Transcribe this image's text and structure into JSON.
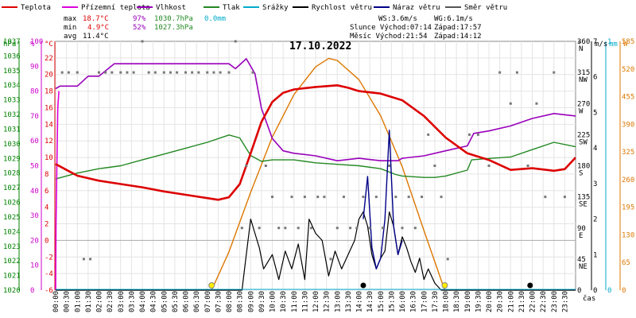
{
  "chart_data": {
    "type": "line",
    "title": "17.10.2022",
    "xlabel": "čas",
    "x_ticks": [
      "00:00",
      "00:30",
      "01:00",
      "01:30",
      "02:00",
      "02:30",
      "03:00",
      "03:30",
      "04:00",
      "04:30",
      "05:00",
      "05:30",
      "06:00",
      "06:30",
      "07:00",
      "07:30",
      "08:00",
      "08:30",
      "09:00",
      "09:30",
      "10:00",
      "10:30",
      "11:00",
      "11:30",
      "12:00",
      "12:30",
      "13:00",
      "13:30",
      "14:00",
      "14:30",
      "15:00",
      "15:30",
      "16:00",
      "16:30",
      "17:00",
      "17:30",
      "18:00",
      "18:30",
      "19:00",
      "19:30",
      "20:00",
      "20:30",
      "21:00",
      "21:30",
      "22:00",
      "22:30",
      "23:00",
      "23:30"
    ],
    "axes": {
      "hpa": {
        "unit": "hPa",
        "color": "#008000",
        "range": [
          1020,
          1037
        ],
        "ticks": [
          "1020",
          "1021",
          "1022",
          "1023",
          "1024",
          "1025",
          "1026",
          "1027",
          "1028",
          "1029",
          "1030",
          "1031",
          "1032",
          "1033",
          "1034",
          "1035",
          "1036",
          "1037"
        ]
      },
      "pct": {
        "unit": "%",
        "color": "#cc00cc",
        "range": [
          0,
          100
        ],
        "ticks": [
          "0",
          "10",
          "20",
          "30",
          "40",
          "50",
          "60",
          "70",
          "80",
          "90",
          "100"
        ]
      },
      "temp": {
        "unit": "°C",
        "color": "#dd0000",
        "range": [
          -6,
          24
        ],
        "ticks": [
          "-6",
          "-4",
          "-2",
          "0",
          "2",
          "4",
          "6",
          "8",
          "10",
          "12",
          "14",
          "16",
          "18",
          "20",
          "22"
        ]
      },
      "dir": {
        "unit": "°",
        "range": [
          0,
          360
        ],
        "ticks": [
          {
            "v": "360",
            "s": "N"
          },
          {
            "v": "315",
            "s": "NW"
          },
          {
            "v": "270",
            "s": "W"
          },
          {
            "v": "225",
            "s": "SW"
          },
          {
            "v": "180",
            "s": "S"
          },
          {
            "v": "135",
            "s": "SE"
          },
          {
            "v": "90",
            "s": "E"
          },
          {
            "v": "45",
            "s": "NE"
          },
          {
            "v": "0",
            "s": ""
          }
        ]
      },
      "wind": {
        "unit": "m/s",
        "color": "#000000",
        "range": [
          0,
          7
        ],
        "ticks": [
          "0",
          "1",
          "2",
          "3",
          "4",
          "5",
          "6",
          "7"
        ]
      },
      "rain": {
        "unit": "mm",
        "color": "#00aacc",
        "range": [
          0,
          1
        ],
        "ticks": [
          "0",
          "1"
        ]
      },
      "w": {
        "unit": "W",
        "color": "#dd7700",
        "range": [
          0,
          585
        ],
        "ticks": [
          "0",
          "65",
          "130",
          "195",
          "260",
          "325",
          "390",
          "455",
          "520",
          "585"
        ]
      }
    },
    "legend": [
      {
        "name": "Teplota",
        "color": "#dd0000"
      },
      {
        "name": "Přízemní teplota",
        "color": "#dd00dd"
      },
      {
        "name": "Vlhkost",
        "color": "#9900bb"
      },
      {
        "name": "Tlak",
        "color": "#228822"
      },
      {
        "name": "Srážky",
        "color": "#00aacc"
      },
      {
        "name": "Rychlost větru",
        "color": "#000000"
      },
      {
        "name": "Náraz větru",
        "color": "#000088"
      },
      {
        "name": "Směr větru",
        "color": "#555555"
      }
    ],
    "stats": {
      "max_label": "max",
      "max_t": "18.7°C",
      "max_h": "97%",
      "max_p": "1030.7hPa",
      "max_r": "0.0mm",
      "min_label": "min",
      "min_t": "4.9°C",
      "min_h": "52%",
      "min_p": "1027.3hPa",
      "avg_label": "avg",
      "avg_t": "11.4°C"
    },
    "info": {
      "ws": "WS:3.6m/s",
      "wg": "WG:6.1m/s",
      "sun": "Slunce Východ:07:14",
      "sun_set": "Západ:17:57",
      "moon": "Měsíc Východ:21:54",
      "moon_set": "Západ:14:12"
    },
    "series": {
      "temp": {
        "axis": "temp",
        "x": [
          0,
          0.5,
          1,
          2,
          3,
          4,
          5,
          6,
          7,
          7.5,
          8,
          8.5,
          9,
          9.5,
          10,
          10.5,
          11,
          12,
          13,
          13.5,
          14,
          15,
          16,
          17,
          18,
          19,
          20,
          21,
          22,
          23,
          23.5,
          24
        ],
        "y": [
          9.2,
          8.5,
          7.8,
          7.2,
          6.8,
          6.4,
          5.9,
          5.5,
          5.1,
          4.9,
          5.2,
          6.8,
          10.5,
          14.3,
          16.7,
          17.8,
          18.2,
          18.5,
          18.7,
          18.4,
          18.0,
          17.7,
          16.9,
          15.0,
          12.4,
          10.5,
          9.7,
          8.5,
          8.7,
          8.4,
          8.6,
          10.0
        ]
      },
      "humidity": {
        "axis": "pct",
        "x": [
          0,
          0.2,
          1,
          1.5,
          2,
          2.7,
          3,
          5,
          7,
          8,
          8.3,
          8.8,
          9.2,
          9.5,
          10,
          10.5,
          11,
          12,
          13,
          14,
          15,
          15.8,
          16,
          17,
          18,
          19,
          19.3,
          20,
          21,
          22,
          23,
          24
        ],
        "y": [
          81,
          82,
          82,
          86,
          86,
          91,
          91,
          91,
          91,
          91,
          89,
          93,
          87,
          73,
          61,
          56,
          55,
          54,
          52,
          53,
          52,
          52,
          53,
          54,
          56,
          58,
          63,
          64,
          66,
          69,
          71,
          70
        ]
      },
      "ground": {
        "axis": "temp",
        "x": [
          0,
          0.02,
          0.05,
          0.1,
          0.15
        ],
        "y": [
          -6,
          2,
          8,
          16,
          18
        ]
      },
      "pressure": {
        "axis": "hpa",
        "x": [
          0,
          1,
          2,
          3,
          4,
          5,
          6,
          7,
          8,
          8.5,
          9,
          9.5,
          10,
          11,
          12,
          13,
          14,
          15,
          15.7,
          16,
          17,
          17.5,
          18,
          19,
          19.2,
          20,
          21,
          22,
          23,
          24
        ],
        "y": [
          1027.6,
          1028.0,
          1028.3,
          1028.5,
          1028.9,
          1029.3,
          1029.7,
          1030.1,
          1030.6,
          1030.4,
          1029.2,
          1028.8,
          1028.9,
          1028.9,
          1028.7,
          1028.6,
          1028.5,
          1028.3,
          1027.9,
          1027.8,
          1027.7,
          1027.7,
          1027.8,
          1028.2,
          1028.9,
          1029.0,
          1029.1,
          1029.6,
          1030.1,
          1029.8
        ]
      },
      "wind": {
        "axis": "wind",
        "x": [
          0,
          8.6,
          8.8,
          9.0,
          9.2,
          9.4,
          9.6,
          9.8,
          10,
          10.3,
          10.6,
          10.9,
          11.2,
          11.5,
          11.7,
          12.0,
          12.3,
          12.6,
          12.9,
          13.2,
          13.5,
          13.8,
          14.0,
          14.2,
          14.4,
          14.6,
          14.8,
          15.0,
          15.2,
          15.4,
          15.6,
          15.8,
          16.0,
          16.2,
          16.4,
          16.6,
          16.8,
          17.0,
          17.2,
          17.5,
          17.8,
          24
        ],
        "y": [
          0,
          0,
          1.0,
          2.0,
          1.6,
          1.2,
          0.6,
          0.8,
          1.0,
          0.3,
          1.1,
          0.6,
          1.3,
          0.3,
          2.0,
          1.6,
          1.4,
          0.4,
          1.1,
          0.6,
          1.0,
          1.4,
          2.0,
          2.2,
          1.8,
          1.0,
          0.6,
          0.9,
          1.1,
          2.2,
          1.8,
          1.0,
          1.5,
          1.2,
          0.8,
          0.5,
          0.9,
          0.3,
          0.6,
          0.2,
          0,
          0
        ]
      },
      "gust": {
        "axis": "wind",
        "x": [
          14.2,
          14.4,
          14.6,
          14.8,
          15.0,
          15.2,
          15.4,
          15.6,
          15.8,
          16.0
        ],
        "y": [
          2.0,
          3.2,
          1.2,
          0.6,
          0.9,
          2.0,
          4.5,
          1.8,
          1.0,
          1.4
        ]
      },
      "solar": {
        "axis": "w",
        "x": [
          7.2,
          8,
          9,
          10,
          11,
          12,
          12.6,
          13,
          14,
          15,
          16,
          17,
          17.96
        ],
        "y": [
          0,
          90,
          230,
          360,
          460,
          525,
          545,
          540,
          495,
          410,
          290,
          140,
          0
        ]
      },
      "wind_dir": {
        "axis": "dir",
        "x": [
          0.3,
          0.6,
          1,
          1.3,
          1.6,
          2,
          2.3,
          2.6,
          3,
          3.3,
          3.6,
          4,
          4.3,
          4.6,
          5,
          5.3,
          5.6,
          6,
          6.3,
          6.6,
          7,
          7.3,
          7.6,
          8,
          8.3,
          8.6,
          8.8,
          9.1,
          9.4,
          9.7,
          10,
          10.3,
          10.6,
          10.9,
          11.2,
          11.5,
          11.8,
          12.1,
          12.4,
          12.7,
          13,
          13.3,
          13.6,
          13.9,
          14.2,
          14.5,
          14.8,
          15.1,
          15.4,
          15.7,
          16,
          16.3,
          16.6,
          16.9,
          17.2,
          17.5,
          17.8,
          18.1,
          19.1,
          19.5,
          20,
          20.5,
          21,
          21.3,
          21.8,
          22.2,
          22.6,
          23,
          23.5
        ],
        "y": [
          315,
          315,
          315,
          45,
          45,
          315,
          315,
          315,
          315,
          315,
          315,
          360,
          315,
          315,
          315,
          315,
          315,
          315,
          315,
          315,
          315,
          315,
          315,
          315,
          360,
          90,
          180,
          315,
          90,
          180,
          135,
          90,
          90,
          135,
          90,
          135,
          90,
          135,
          135,
          45,
          90,
          135,
          90,
          90,
          135,
          90,
          135,
          90,
          180,
          135,
          90,
          135,
          90,
          135,
          225,
          180,
          135,
          45,
          225,
          225,
          180,
          315,
          270,
          315,
          180,
          270,
          135,
          315,
          135
        ]
      },
      "rain_marks": {
        "x": [
          7.2,
          14.2,
          17.96,
          21.9
        ],
        "types": [
          "sun",
          "moon",
          "sun",
          "moon"
        ]
      }
    }
  }
}
